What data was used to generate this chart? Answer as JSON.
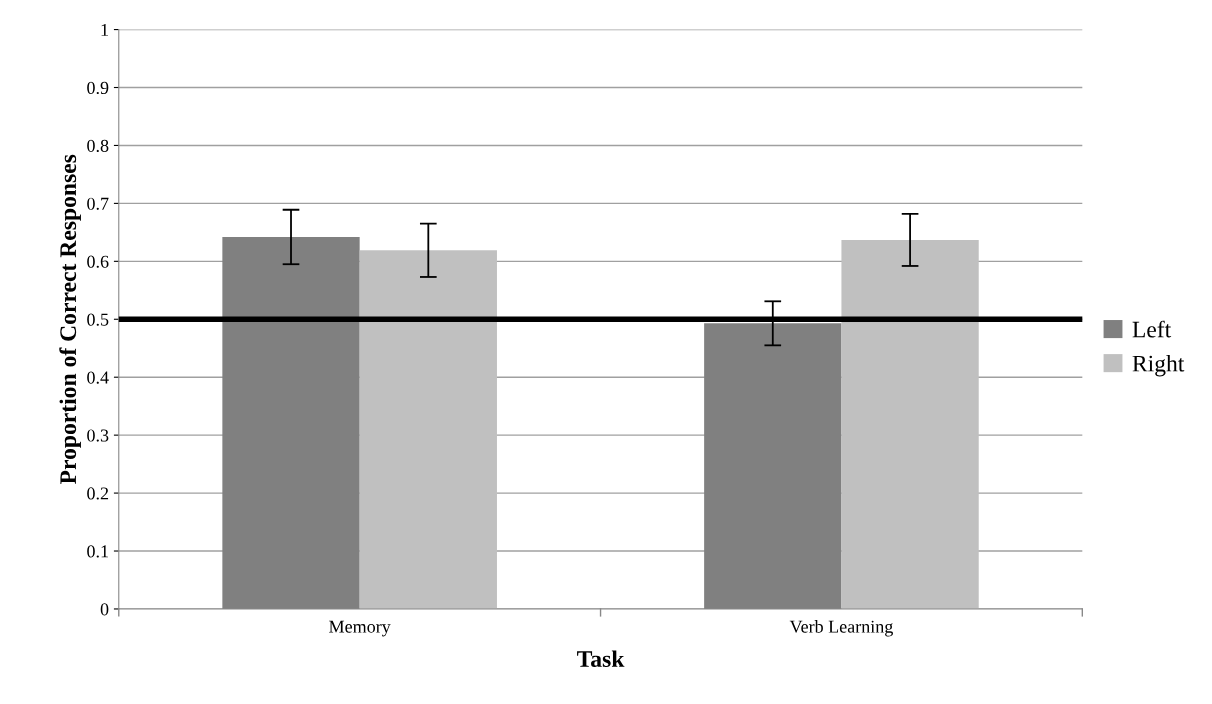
{
  "chart_data": {
    "type": "bar",
    "xlabel": "Task",
    "ylabel": "Proportion of Correct Responses",
    "categories": [
      "Memory",
      "Verb Learning"
    ],
    "series": [
      {
        "name": "Left",
        "color": "#808080",
        "values": [
          0.642,
          0.493
        ],
        "errors": [
          0.047,
          0.038
        ]
      },
      {
        "name": "Right",
        "color": "#c0c0c0",
        "values": [
          0.619,
          0.637
        ],
        "errors": [
          0.046,
          0.045
        ]
      }
    ],
    "ylim": [
      0,
      1
    ],
    "yticks": [
      0,
      0.1,
      0.2,
      0.3,
      0.4,
      0.5,
      0.6,
      0.7,
      0.8,
      0.9,
      1
    ],
    "ref_lines": [
      {
        "axis": "y",
        "value": 0.5,
        "color": "#000000"
      }
    ],
    "grid": "y",
    "legend": "right"
  }
}
